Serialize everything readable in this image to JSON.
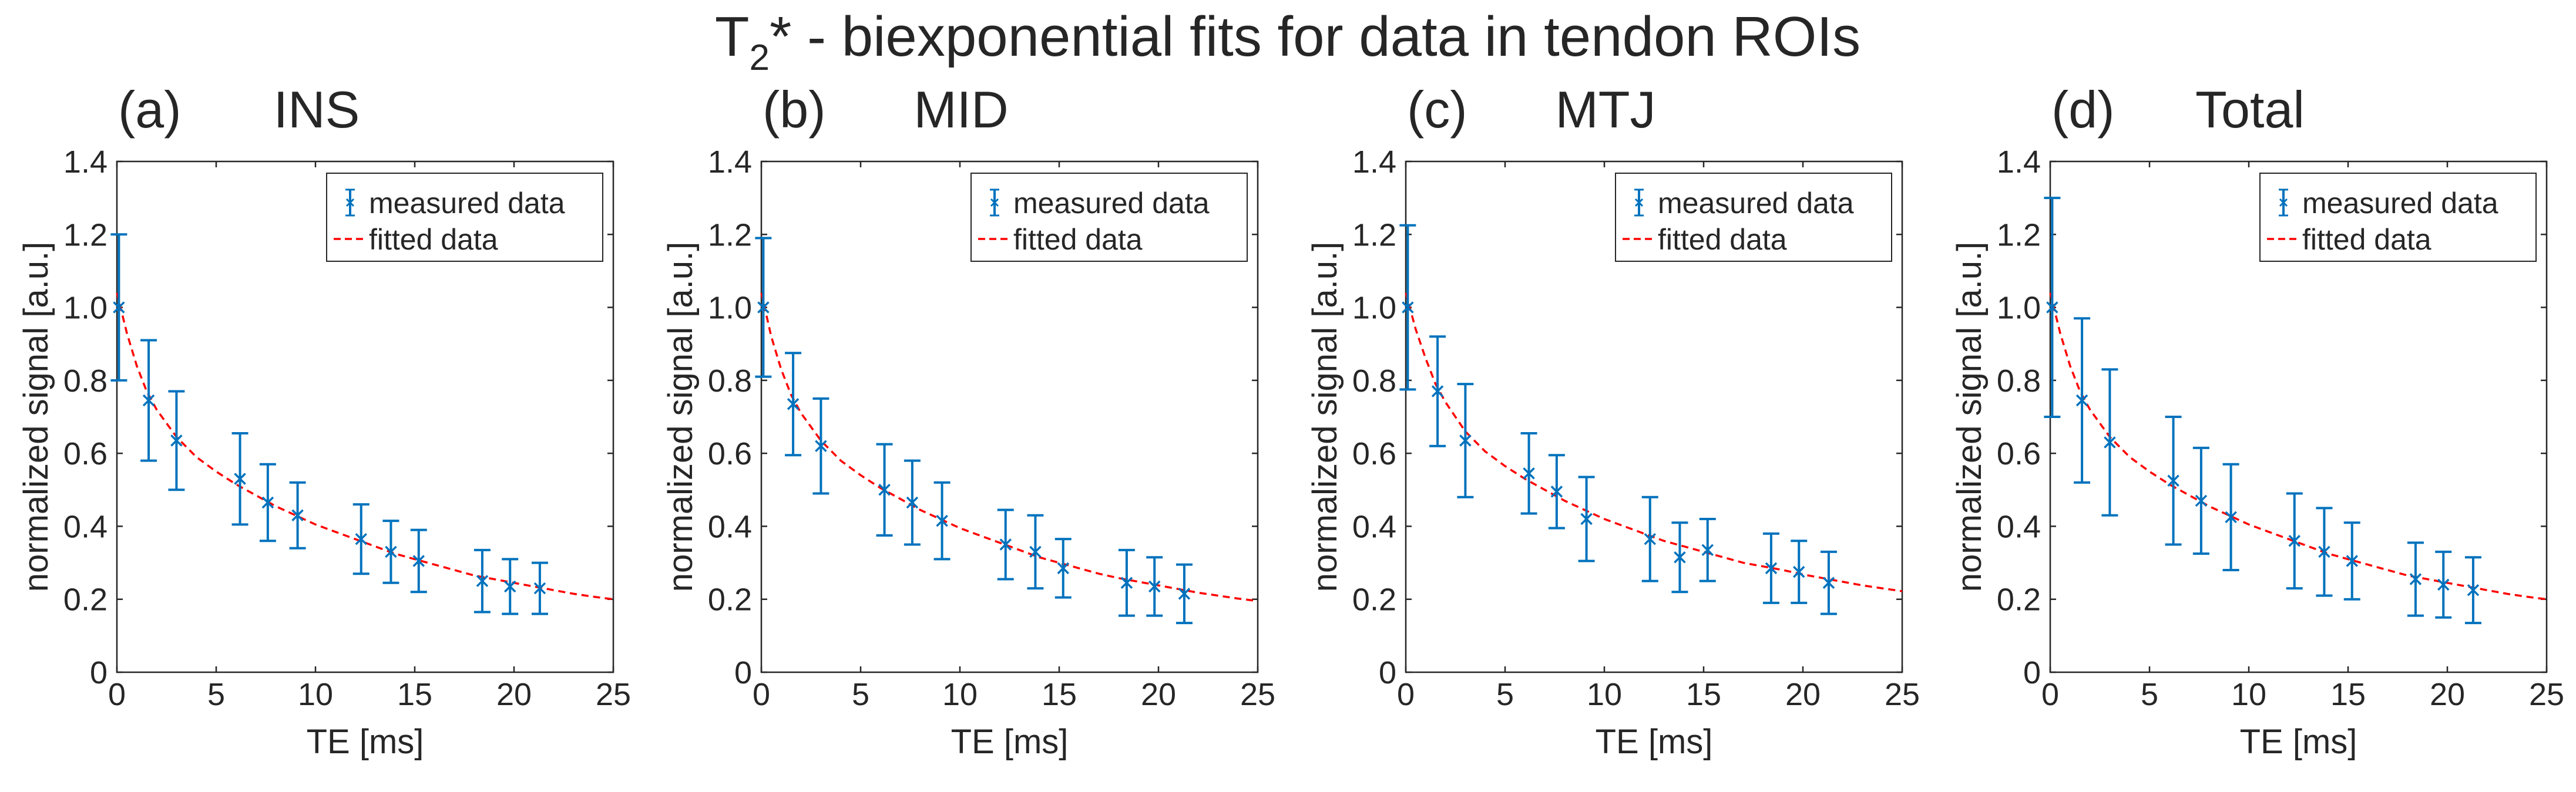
{
  "title": {
    "prefix": "T",
    "subscript": "2",
    "rest": "* - biexponential fits for data in tendon ROIs"
  },
  "colors": {
    "measured": "#0072BD",
    "fitted": "#FF0000",
    "axes": "#262626",
    "text": "#262626"
  },
  "chart_data": [
    {
      "type": "scatter",
      "panel_label": "(a)",
      "title": "INS",
      "xlabel": "TE [ms]",
      "ylabel": "normalized signal [a.u.]",
      "xlim": [
        0,
        25
      ],
      "ylim": [
        0,
        1.4
      ],
      "xticks": [
        "0",
        "5",
        "10",
        "15",
        "20",
        "25"
      ],
      "yticks": [
        "0",
        "0.2",
        "0.4",
        "0.6",
        "0.8",
        "1.0",
        "1.2",
        "1.4"
      ],
      "grid": false,
      "legend": {
        "position": "top-right",
        "entries": [
          "measured data",
          "fitted data"
        ]
      },
      "series": [
        {
          "name": "measured data",
          "style": "x-markers-with-errorbars",
          "x": [
            0.1,
            1.6,
            3.0,
            6.2,
            7.6,
            9.1,
            12.3,
            13.8,
            15.2,
            18.4,
            19.8,
            21.3
          ],
          "y": [
            1.0,
            0.745,
            0.635,
            0.53,
            0.465,
            0.43,
            0.365,
            0.33,
            0.305,
            0.25,
            0.235,
            0.23
          ],
          "error": [
            0.2,
            0.165,
            0.135,
            0.125,
            0.105,
            0.09,
            0.095,
            0.085,
            0.085,
            0.085,
            0.075,
            0.07
          ]
        },
        {
          "name": "fitted data",
          "style": "dashed-line",
          "x": [
            0,
            0.5,
            1,
            1.5,
            2,
            3,
            4,
            5,
            6,
            7,
            8,
            9,
            10,
            11,
            12,
            13,
            14,
            15,
            16,
            17,
            18,
            19,
            20,
            21,
            22,
            23,
            24,
            25
          ],
          "y": [
            1.04,
            0.93,
            0.84,
            0.77,
            0.72,
            0.645,
            0.59,
            0.55,
            0.515,
            0.485,
            0.455,
            0.43,
            0.405,
            0.385,
            0.365,
            0.345,
            0.325,
            0.31,
            0.295,
            0.28,
            0.265,
            0.255,
            0.245,
            0.235,
            0.225,
            0.215,
            0.207,
            0.2
          ]
        }
      ]
    },
    {
      "type": "scatter",
      "panel_label": "(b)",
      "title": "MID",
      "xlabel": "TE [ms]",
      "ylabel": "normalized signal [a.u.]",
      "xlim": [
        0,
        25
      ],
      "ylim": [
        0,
        1.4
      ],
      "xticks": [
        "0",
        "5",
        "10",
        "15",
        "20",
        "25"
      ],
      "yticks": [
        "0",
        "0.2",
        "0.4",
        "0.6",
        "0.8",
        "1.0",
        "1.2",
        "1.4"
      ],
      "grid": false,
      "legend": {
        "position": "top-right",
        "entries": [
          "measured data",
          "fitted data"
        ]
      },
      "series": [
        {
          "name": "measured data",
          "style": "x-markers-with-errorbars",
          "x": [
            0.1,
            1.6,
            3.0,
            6.2,
            7.6,
            9.1,
            12.3,
            13.8,
            15.2,
            18.4,
            19.8,
            21.3
          ],
          "y": [
            1.0,
            0.735,
            0.62,
            0.5,
            0.465,
            0.415,
            0.35,
            0.33,
            0.285,
            0.245,
            0.235,
            0.215
          ],
          "error": [
            0.19,
            0.14,
            0.13,
            0.125,
            0.115,
            0.105,
            0.095,
            0.1,
            0.08,
            0.09,
            0.08,
            0.08
          ]
        },
        {
          "name": "fitted data",
          "style": "dashed-line",
          "x": [
            0,
            0.5,
            1,
            1.5,
            2,
            3,
            4,
            5,
            6,
            7,
            8,
            9,
            10,
            11,
            12,
            13,
            14,
            15,
            16,
            17,
            18,
            19,
            20,
            21,
            22,
            23,
            24,
            25
          ],
          "y": [
            1.04,
            0.92,
            0.83,
            0.76,
            0.71,
            0.635,
            0.58,
            0.54,
            0.505,
            0.475,
            0.445,
            0.42,
            0.395,
            0.375,
            0.355,
            0.335,
            0.315,
            0.3,
            0.285,
            0.27,
            0.258,
            0.248,
            0.238,
            0.228,
            0.218,
            0.21,
            0.202,
            0.195
          ]
        }
      ]
    },
    {
      "type": "scatter",
      "panel_label": "(c)",
      "title": "MTJ",
      "xlabel": "TE [ms]",
      "ylabel": "normalized signal [a.u.]",
      "xlim": [
        0,
        25
      ],
      "ylim": [
        0,
        1.4
      ],
      "xticks": [
        "0",
        "5",
        "10",
        "15",
        "20",
        "25"
      ],
      "yticks": [
        "0",
        "0.2",
        "0.4",
        "0.6",
        "0.8",
        "1.0",
        "1.2",
        "1.4"
      ],
      "grid": false,
      "legend": {
        "position": "top-right",
        "entries": [
          "measured data",
          "fitted data"
        ]
      },
      "series": [
        {
          "name": "measured data",
          "style": "x-markers-with-errorbars",
          "x": [
            0.1,
            1.6,
            3.0,
            6.2,
            7.6,
            9.1,
            12.3,
            13.8,
            15.2,
            18.4,
            19.8,
            21.3
          ],
          "y": [
            1.0,
            0.77,
            0.635,
            0.545,
            0.495,
            0.42,
            0.365,
            0.315,
            0.335,
            0.285,
            0.275,
            0.245
          ],
          "error": [
            0.225,
            0.15,
            0.155,
            0.11,
            0.1,
            0.115,
            0.115,
            0.095,
            0.085,
            0.095,
            0.085,
            0.085
          ]
        },
        {
          "name": "fitted data",
          "style": "dashed-line",
          "x": [
            0,
            0.5,
            1,
            1.5,
            2,
            3,
            4,
            5,
            6,
            7,
            8,
            9,
            10,
            11,
            12,
            13,
            14,
            15,
            16,
            17,
            18,
            19,
            20,
            21,
            22,
            23,
            24,
            25
          ],
          "y": [
            1.04,
            0.94,
            0.86,
            0.79,
            0.74,
            0.66,
            0.605,
            0.565,
            0.53,
            0.5,
            0.47,
            0.445,
            0.42,
            0.4,
            0.38,
            0.36,
            0.345,
            0.33,
            0.315,
            0.3,
            0.29,
            0.28,
            0.268,
            0.258,
            0.248,
            0.238,
            0.23,
            0.222
          ]
        }
      ]
    },
    {
      "type": "scatter",
      "panel_label": "(d)",
      "title": "Total",
      "xlabel": "TE [ms]",
      "ylabel": "normalized signal [a.u.]",
      "xlim": [
        0,
        25
      ],
      "ylim": [
        0,
        1.4
      ],
      "xticks": [
        "0",
        "5",
        "10",
        "15",
        "20",
        "25"
      ],
      "yticks": [
        "0",
        "0.2",
        "0.4",
        "0.6",
        "0.8",
        "1.0",
        "1.2",
        "1.4"
      ],
      "grid": false,
      "legend": {
        "position": "top-right",
        "entries": [
          "measured data",
          "fitted data"
        ]
      },
      "series": [
        {
          "name": "measured data",
          "style": "x-markers-with-errorbars",
          "x": [
            0.1,
            1.6,
            3.0,
            6.2,
            7.6,
            9.1,
            12.3,
            13.8,
            15.2,
            18.4,
            19.8,
            21.3
          ],
          "y": [
            1.0,
            0.745,
            0.63,
            0.525,
            0.47,
            0.425,
            0.36,
            0.33,
            0.305,
            0.255,
            0.24,
            0.225
          ],
          "error": [
            0.3,
            0.225,
            0.2,
            0.175,
            0.145,
            0.145,
            0.13,
            0.12,
            0.105,
            0.1,
            0.09,
            0.09
          ]
        },
        {
          "name": "fitted data",
          "style": "dashed-line",
          "x": [
            0,
            0.5,
            1,
            1.5,
            2,
            3,
            4,
            5,
            6,
            7,
            8,
            9,
            10,
            11,
            12,
            13,
            14,
            15,
            16,
            17,
            18,
            19,
            20,
            21,
            22,
            23,
            24,
            25
          ],
          "y": [
            1.04,
            0.93,
            0.84,
            0.77,
            0.72,
            0.645,
            0.59,
            0.55,
            0.515,
            0.485,
            0.455,
            0.43,
            0.405,
            0.385,
            0.365,
            0.345,
            0.325,
            0.31,
            0.295,
            0.28,
            0.265,
            0.255,
            0.245,
            0.235,
            0.225,
            0.215,
            0.207,
            0.2
          ]
        }
      ]
    }
  ]
}
